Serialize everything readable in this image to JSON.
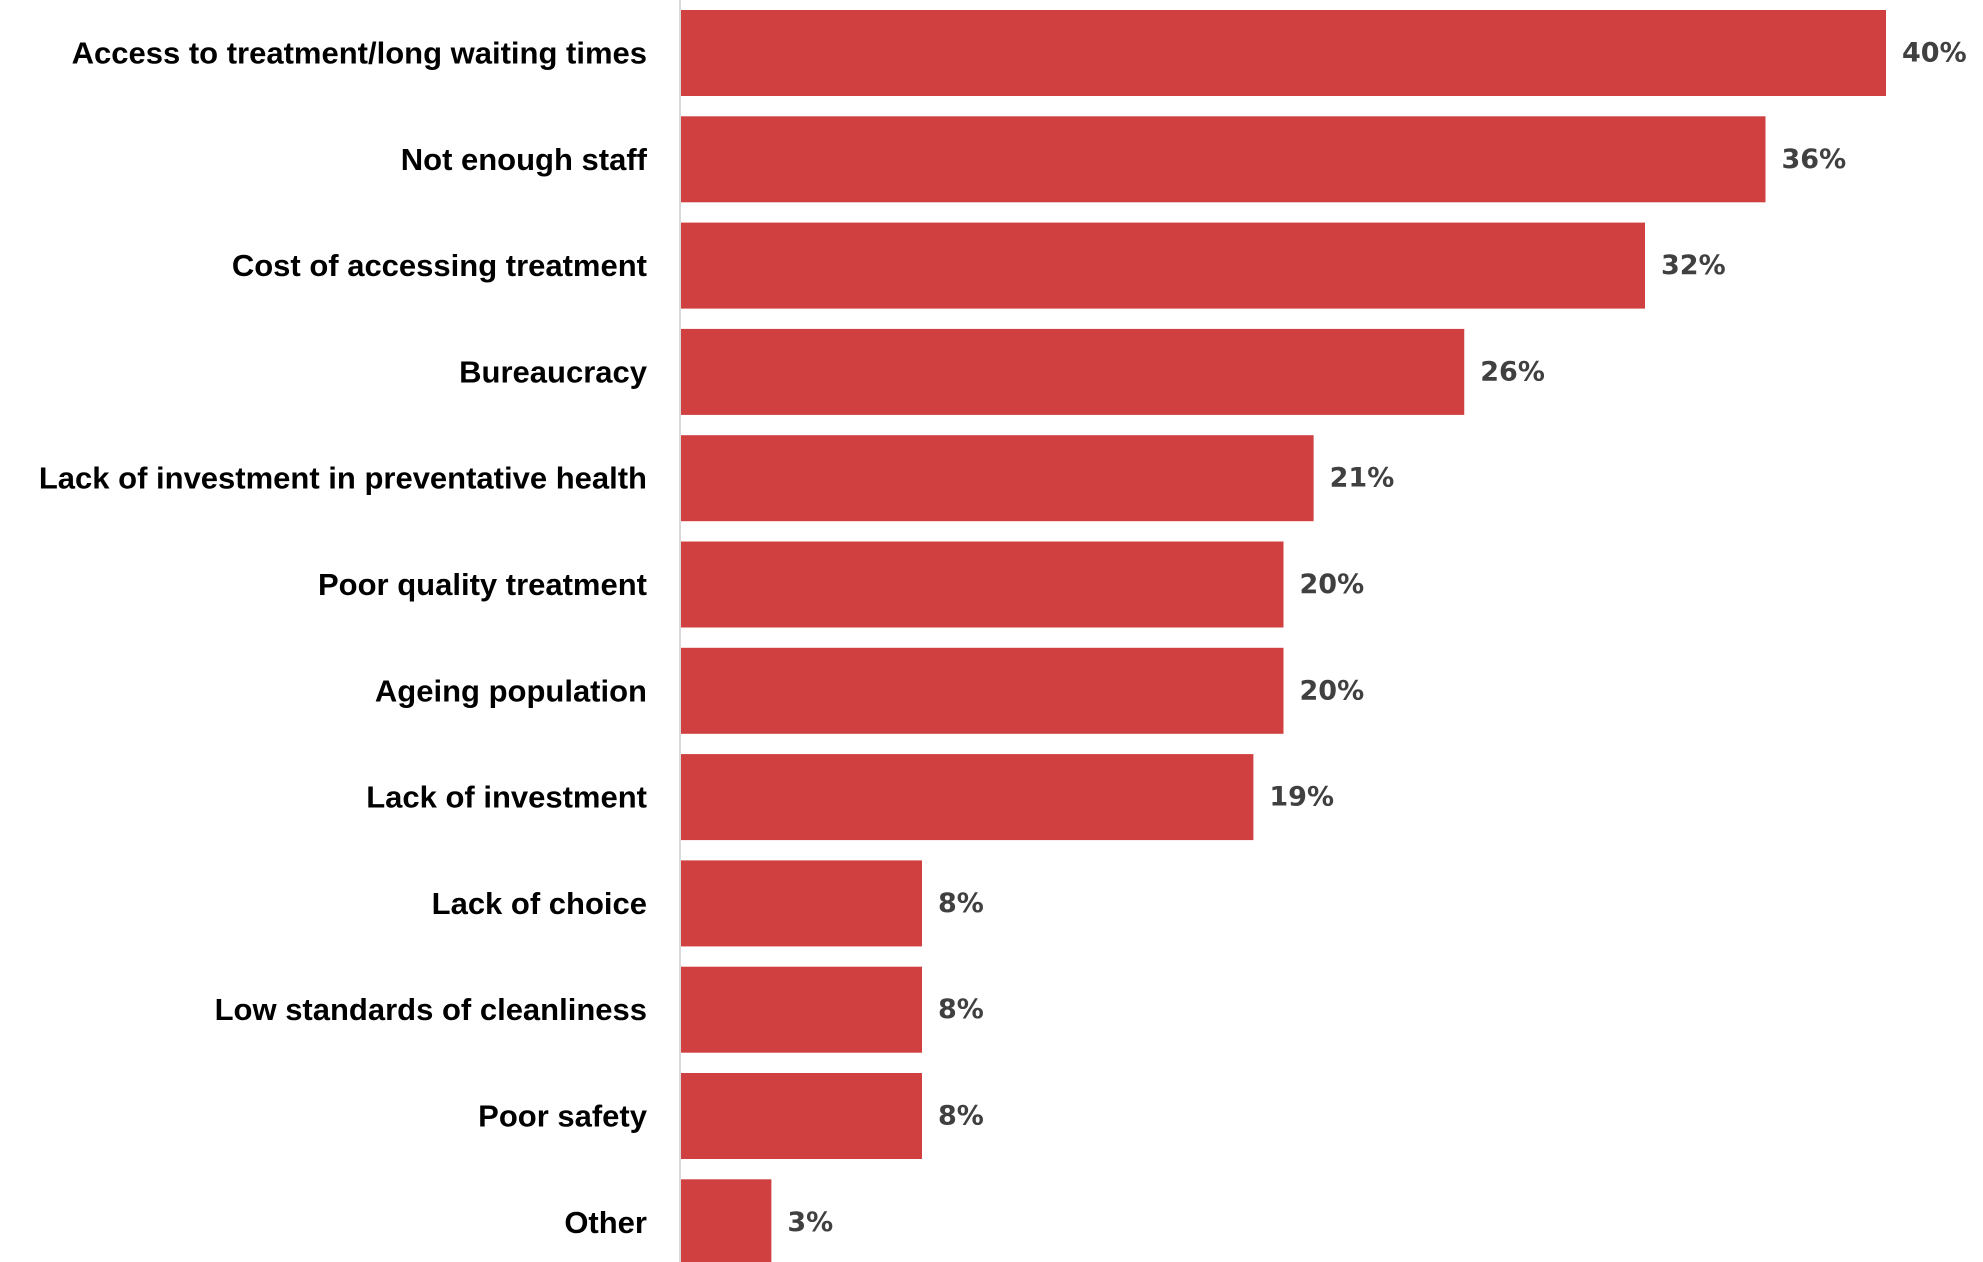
{
  "chart_data": {
    "type": "bar",
    "orientation": "horizontal",
    "categories": [
      "Access to treatment/long waiting times",
      "Not enough staff",
      "Cost of accessing treatment",
      "Bureaucracy",
      "Lack of investment in preventative health",
      "Poor quality treatment",
      "Ageing population",
      "Lack of investment ",
      "Lack of choice",
      "Low standards of cleanliness",
      "Poor safety",
      "Other "
    ],
    "values": [
      40,
      36,
      32,
      26,
      21,
      20,
      20,
      19,
      8,
      8,
      8,
      3
    ],
    "value_labels": [
      "40%",
      "36%",
      "32%",
      "26%",
      "21%",
      "20%",
      "20%",
      "19%",
      "8%",
      "8%",
      "8%",
      "3%"
    ],
    "unit": "%",
    "title": "",
    "xlabel": "",
    "ylabel": "",
    "xlim": [
      0,
      40
    ],
    "grid": false,
    "legend": "none",
    "colors": {
      "bar": "#d04040",
      "axis": "#d9d9d9",
      "category_text": "#000000",
      "value_text": "#404040"
    }
  }
}
